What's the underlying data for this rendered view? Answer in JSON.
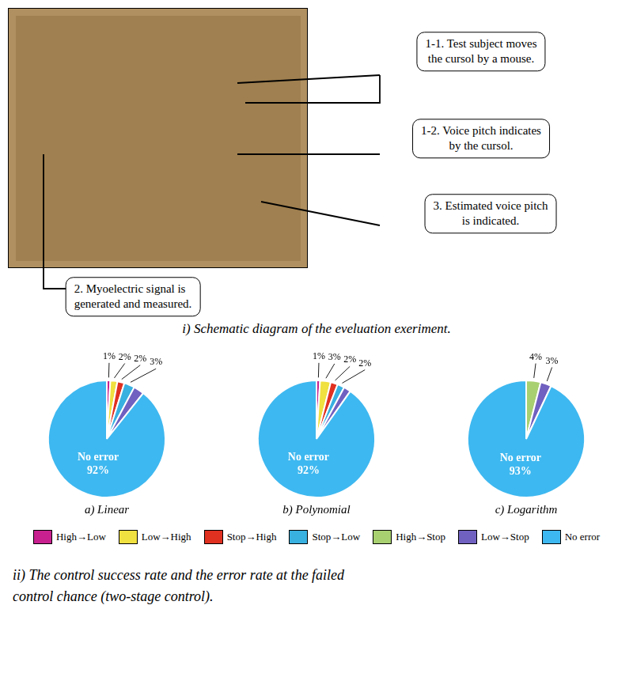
{
  "chart_data": [
    {
      "type": "pie",
      "title": "a) Linear",
      "categories": [
        "High→Low",
        "Low→High",
        "Stop→High",
        "Stop→Low",
        "High→Stop",
        "Low→Stop",
        "No error"
      ],
      "values": [
        1,
        2,
        2,
        3,
        0,
        3,
        92
      ],
      "colors": [
        "#C8208F",
        "#F0E040",
        "#E03020",
        "#38B0E0",
        "#A8D070",
        "#7060C0",
        "#3EB8F0"
      ],
      "data_labels": true,
      "value_labels": [
        "1%",
        "2%",
        "2%",
        "3%",
        null,
        null,
        "92%"
      ],
      "annotations": [
        "No error"
      ]
    },
    {
      "type": "pie",
      "title": "b) Polynomial",
      "categories": [
        "High→Low",
        "Low→High",
        "Stop→High",
        "Stop→Low",
        "High→Stop",
        "Low→Stop",
        "No error"
      ],
      "values": [
        1,
        3,
        2,
        2,
        0,
        2,
        92
      ],
      "colors": [
        "#C8208F",
        "#F0E040",
        "#E03020",
        "#38B0E0",
        "#A8D070",
        "#7060C0",
        "#3EB8F0"
      ],
      "data_labels": true,
      "value_labels": [
        "1%",
        "3%",
        "2%",
        "2%",
        null,
        null,
        "92%"
      ],
      "annotations": [
        "No error"
      ]
    },
    {
      "type": "pie",
      "title": "c) Logarithm",
      "categories": [
        "High→Low",
        "Low→High",
        "Stop→High",
        "Stop→Low",
        "High→Stop",
        "Low→Stop",
        "No error"
      ],
      "values": [
        0,
        0,
        0,
        0,
        4,
        3,
        93
      ],
      "colors": [
        "#C8208F",
        "#F0E040",
        "#E03020",
        "#38B0E0",
        "#A8D070",
        "#7060C0",
        "#3EB8F0"
      ],
      "data_labels": true,
      "value_labels": [
        null,
        null,
        null,
        null,
        "4%",
        "3%",
        "93%"
      ],
      "annotations": [
        "No error"
      ]
    }
  ],
  "legend": "bottom",
  "annotations": [
    "1-1. Test subject moves\nthe cursol by a mouse.",
    "1-2. Voice pitch indicates\nby the cursol.",
    "3. Estimated voice pitch\nis indicated.",
    "2. Myoelectric signal is\ngenerated and measured."
  ],
  "subtitle": [
    "i) Schematic diagram of the eveluation exeriment.",
    "ii) The control success rate and the error rate at the failed\ncontrol chance (two-stage control)."
  ]
}
